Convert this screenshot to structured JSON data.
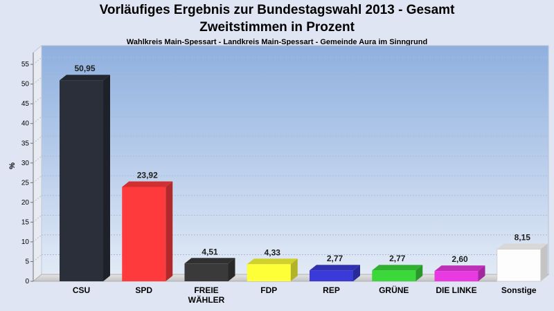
{
  "header": {
    "title_line1": "Vorläufiges Ergebnis zur Bundestagswahl 2013 - Gesamt",
    "title_line2": "Zweitstimmen in Prozent",
    "subtitle": "Wahlkreis Main-Spessart - Landkreis Main-Spessart - Gemeinde Aura im Sinngrund"
  },
  "chart_data": {
    "type": "bar",
    "title": "Vorläufiges Ergebnis zur Bundestagswahl 2013 - Gesamt",
    "subtitle": "Zweitstimmen in Prozent",
    "ylabel": "%",
    "xlabel": "",
    "ylim": [
      0,
      58
    ],
    "yticks": [
      0,
      5,
      10,
      15,
      20,
      25,
      30,
      35,
      40,
      45,
      50,
      55
    ],
    "grid": true,
    "categories": [
      "CSU",
      "SPD",
      "FREIE WÄHLER",
      "FDP",
      "REP",
      "GRÜNE",
      "DIE LINKE",
      "Sonstige"
    ],
    "category_labels": [
      [
        "CSU"
      ],
      [
        "SPD"
      ],
      [
        "FREIE",
        "WÄHLER"
      ],
      [
        "FDP"
      ],
      [
        "REP"
      ],
      [
        "GRÜNE"
      ],
      [
        "DIE LINKE"
      ],
      [
        "Sonstige"
      ]
    ],
    "values": [
      50.95,
      23.92,
      4.51,
      4.33,
      2.77,
      2.77,
      2.6,
      8.15
    ],
    "value_labels": [
      "50,95",
      "23,92",
      "4,51",
      "4,33",
      "2,77",
      "2,77",
      "2,60",
      "8,15"
    ],
    "colors": [
      "#2b2f3a",
      "#ff3a3d",
      "#3a3a3a",
      "#ffff38",
      "#3a3ad8",
      "#3ad83a",
      "#e83ae0",
      "#ffffff"
    ]
  }
}
